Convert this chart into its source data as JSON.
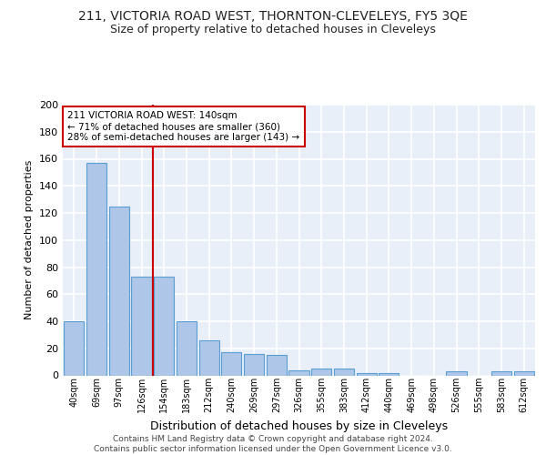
{
  "title1": "211, VICTORIA ROAD WEST, THORNTON-CLEVELEYS, FY5 3QE",
  "title2": "Size of property relative to detached houses in Cleveleys",
  "xlabel": "Distribution of detached houses by size in Cleveleys",
  "ylabel": "Number of detached properties",
  "categories": [
    "40sqm",
    "69sqm",
    "97sqm",
    "126sqm",
    "154sqm",
    "183sqm",
    "212sqm",
    "240sqm",
    "269sqm",
    "297sqm",
    "326sqm",
    "355sqm",
    "383sqm",
    "412sqm",
    "440sqm",
    "469sqm",
    "498sqm",
    "526sqm",
    "555sqm",
    "583sqm",
    "612sqm"
  ],
  "values": [
    40,
    157,
    125,
    73,
    73,
    40,
    26,
    17,
    16,
    15,
    4,
    5,
    5,
    2,
    2,
    0,
    0,
    3,
    0,
    3,
    3
  ],
  "bar_color": "#aec6e8",
  "bar_edge_color": "#5a9fd4",
  "vline_x": 3.5,
  "vline_color": "#cc0000",
  "annotation_text": "211 VICTORIA ROAD WEST: 140sqm\n← 71% of detached houses are smaller (360)\n28% of semi-detached houses are larger (143) →",
  "annotation_box_color": "#ffffff",
  "annotation_box_edge": "#cc0000",
  "ylim": [
    0,
    200
  ],
  "yticks": [
    0,
    20,
    40,
    60,
    80,
    100,
    120,
    140,
    160,
    180,
    200
  ],
  "footer": "Contains HM Land Registry data © Crown copyright and database right 2024.\nContains public sector information licensed under the Open Government Licence v3.0.",
  "bg_color": "#e8eff8",
  "grid_color": "#ffffff",
  "title1_fontsize": 10,
  "title2_fontsize": 9,
  "xlabel_fontsize": 9,
  "ylabel_fontsize": 8,
  "footer_fontsize": 6.5
}
